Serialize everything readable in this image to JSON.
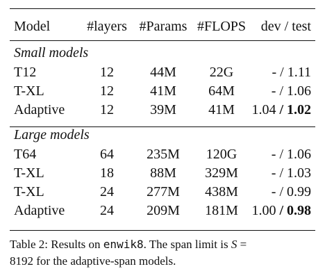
{
  "table": {
    "headers": {
      "model": "Model",
      "layers": "#layers",
      "params": "#Params",
      "flops": "#FLOPS",
      "devtest": "dev / test"
    },
    "sections": [
      {
        "title": "Small models",
        "rows": [
          {
            "model": "T12",
            "layers": "12",
            "params": "44M",
            "flops": "22G",
            "dev": "-",
            "sep": " / ",
            "test": "1.11",
            "test_bold": false
          },
          {
            "model": "T-XL",
            "layers": "12",
            "params": "41M",
            "flops": "64M",
            "dev": "-",
            "sep": " / ",
            "test": "1.06",
            "test_bold": false
          },
          {
            "model": "Adaptive",
            "layers": "12",
            "params": "39M",
            "flops": "41M",
            "dev": "1.04",
            "sep": " / ",
            "test": "1.02",
            "test_bold": true
          }
        ]
      },
      {
        "title": "Large models",
        "rows": [
          {
            "model": "T64",
            "layers": "64",
            "params": "235M",
            "flops": "120G",
            "dev": "-",
            "sep": " / ",
            "test": "1.06",
            "test_bold": false
          },
          {
            "model": "T-XL",
            "layers": "18",
            "params": "88M",
            "flops": "329M",
            "dev": "-",
            "sep": " / ",
            "test": "1.03",
            "test_bold": false
          },
          {
            "model": "T-XL",
            "layers": "24",
            "params": "277M",
            "flops": "438M",
            "dev": "-",
            "sep": " / ",
            "test": "0.99",
            "test_bold": false
          },
          {
            "model": "Adaptive",
            "layers": "24",
            "params": "209M",
            "flops": "181M",
            "dev": "1.00",
            "sep": " / ",
            "test": "0.98",
            "test_bold": true
          }
        ]
      }
    ]
  },
  "caption": {
    "line1_prefix": "Table 2: Results on ",
    "dataset": "enwik8",
    "line1_mid": ". The span limit is ",
    "var": "S",
    "line1_eq": " =",
    "line2": "8192 for the adaptive-span models."
  }
}
